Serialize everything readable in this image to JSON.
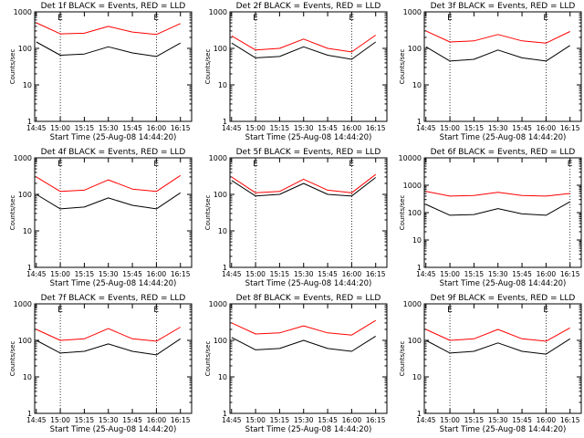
{
  "chart_data": [
    {
      "type": "line",
      "title": "Det 1f BLACK = Events, RED = LLD",
      "xlabel": "Start Time (25-Aug-08 14:44:20)",
      "ylabel": "Counts/sec",
      "y_scale": "log",
      "ylim": [
        1,
        1000
      ],
      "y_ticks": [
        "1",
        "10",
        "100",
        "1000"
      ],
      "x_ticks": [
        "14:45",
        "15:00",
        "15:15",
        "15:30",
        "15:45",
        "16:00",
        "16:15"
      ],
      "x": [
        "14:45",
        "15:00",
        "15:15",
        "15:30",
        "15:45",
        "16:00",
        "16:15"
      ],
      "markers": [
        {
          "label": "E",
          "at": "15:00"
        },
        {
          "label": "E",
          "at": "16:00"
        }
      ],
      "series": [
        {
          "values": [
            500,
            250,
            260,
            400,
            280,
            240,
            480
          ],
          "color": "#ff0000"
        },
        {
          "values": [
            150,
            65,
            70,
            110,
            75,
            60,
            140
          ],
          "color": "#000000"
        }
      ]
    },
    {
      "type": "line",
      "title": "Det 2f BLACK = Events, RED = LLD",
      "xlabel": "Start Time (25-Aug-08 14:44:20)",
      "ylabel": "Counts/sec",
      "y_scale": "log",
      "ylim": [
        1,
        1000
      ],
      "y_ticks": [
        "1",
        "10",
        "100",
        "1000"
      ],
      "x_ticks": [
        "14:45",
        "15:00",
        "15:15",
        "15:30",
        "15:45",
        "16:00",
        "16:15"
      ],
      "x": [
        "14:45",
        "15:00",
        "15:15",
        "15:30",
        "15:45",
        "16:00",
        "16:15"
      ],
      "markers": [
        {
          "label": "E",
          "at": "15:00"
        },
        {
          "label": "E",
          "at": "16:00"
        }
      ],
      "series": [
        {
          "values": [
            220,
            90,
            100,
            180,
            100,
            80,
            230
          ],
          "color": "#ff0000"
        },
        {
          "values": [
            140,
            55,
            60,
            110,
            65,
            50,
            150
          ],
          "color": "#000000"
        }
      ]
    },
    {
      "type": "line",
      "title": "Det 3f BLACK = Events, RED = LLD",
      "xlabel": "Start Time (25-Aug-08 14:44:20)",
      "ylabel": "Counts/sec",
      "y_scale": "log",
      "ylim": [
        1,
        1000
      ],
      "y_ticks": [
        "1",
        "10",
        "100",
        "1000"
      ],
      "x_ticks": [
        "14:45",
        "15:00",
        "15:15",
        "15:30",
        "15:45",
        "16:00",
        "16:15"
      ],
      "x": [
        "14:45",
        "15:00",
        "15:15",
        "15:30",
        "15:45",
        "16:00",
        "16:15"
      ],
      "markers": [
        {
          "label": "E",
          "at": "15:00"
        },
        {
          "label": "E",
          "at": "16:00"
        }
      ],
      "series": [
        {
          "values": [
            300,
            150,
            160,
            240,
            160,
            140,
            290
          ],
          "color": "#ff0000"
        },
        {
          "values": [
            110,
            45,
            50,
            90,
            55,
            45,
            120
          ],
          "color": "#000000"
        }
      ]
    },
    {
      "type": "line",
      "title": "Det 4f BLACK = Events, RED = LLD",
      "xlabel": "Start Time (25-Aug-08 14:44:20)",
      "ylabel": "Counts/sec",
      "y_scale": "log",
      "ylim": [
        1,
        1000
      ],
      "y_ticks": [
        "1",
        "10",
        "100",
        "1000"
      ],
      "x_ticks": [
        "14:45",
        "15:00",
        "15:15",
        "15:30",
        "15:45",
        "16:00",
        "16:15"
      ],
      "x": [
        "14:45",
        "15:00",
        "15:15",
        "15:30",
        "15:45",
        "16:00",
        "16:15"
      ],
      "markers": [
        {
          "label": "E",
          "at": "15:00"
        },
        {
          "label": "E",
          "at": "16:00"
        }
      ],
      "series": [
        {
          "values": [
            300,
            120,
            130,
            250,
            140,
            120,
            330
          ],
          "color": "#ff0000"
        },
        {
          "values": [
            100,
            40,
            45,
            80,
            50,
            40,
            110
          ],
          "color": "#000000"
        }
      ]
    },
    {
      "type": "line",
      "title": "Det 5f BLACK = Events, RED = LLD",
      "xlabel": "Start Time (25-Aug-08 14:44:20)",
      "ylabel": "Counts/sec",
      "y_scale": "log",
      "ylim": [
        1,
        1000
      ],
      "y_ticks": [
        "1",
        "10",
        "100",
        "1000"
      ],
      "x_ticks": [
        "14:45",
        "15:00",
        "15:15",
        "15:30",
        "15:45",
        "16:00",
        "16:15"
      ],
      "x": [
        "14:45",
        "15:00",
        "15:15",
        "15:30",
        "15:45",
        "16:00",
        "16:15"
      ],
      "markers": [
        {
          "label": "E",
          "at": "15:00"
        },
        {
          "label": "E",
          "at": "16:00"
        }
      ],
      "series": [
        {
          "values": [
            300,
            110,
            120,
            260,
            130,
            110,
            350
          ],
          "color": "#ff0000"
        },
        {
          "values": [
            240,
            90,
            100,
            200,
            100,
            90,
            290
          ],
          "color": "#000000"
        }
      ]
    },
    {
      "type": "line",
      "title": "Det 6f BLACK = Events, RED = LLD",
      "xlabel": "Start Time (25-Aug-08 14:44:20)",
      "ylabel": "Counts/sec",
      "y_scale": "log",
      "ylim": [
        1,
        10000
      ],
      "y_ticks": [
        "1",
        "10",
        "100",
        "1000",
        "10000"
      ],
      "x_ticks": [
        "14:45",
        "15:00",
        "15:15",
        "15:30",
        "15:45",
        "16:00",
        "16:15"
      ],
      "x": [
        "14:45",
        "15:00",
        "15:15",
        "15:30",
        "15:45",
        "16:00",
        "16:15"
      ],
      "markers": [
        {
          "label": "E",
          "at": "16:15"
        }
      ],
      "series": [
        {
          "values": [
            600,
            400,
            420,
            550,
            420,
            400,
            500
          ],
          "color": "#ff0000"
        },
        {
          "values": [
            200,
            80,
            85,
            140,
            90,
            80,
            250
          ],
          "color": "#000000"
        }
      ]
    },
    {
      "type": "line",
      "title": "Det 7f BLACK = Events, RED = LLD",
      "xlabel": "Start Time (25-Aug-08 14:44:20)",
      "ylabel": "Counts/sec",
      "y_scale": "log",
      "ylim": [
        1,
        1000
      ],
      "y_ticks": [
        "1",
        "10",
        "100",
        "1000"
      ],
      "x_ticks": [
        "14:45",
        "15:00",
        "15:15",
        "15:30",
        "15:45",
        "16:00",
        "16:15"
      ],
      "x": [
        "14:45",
        "15:00",
        "15:15",
        "15:30",
        "15:45",
        "16:00",
        "16:15"
      ],
      "markers": [
        {
          "label": "E",
          "at": "15:00"
        },
        {
          "label": "E",
          "at": "16:00"
        }
      ],
      "series": [
        {
          "values": [
            200,
            100,
            110,
            210,
            110,
            95,
            230
          ],
          "color": "#ff0000"
        },
        {
          "values": [
            100,
            45,
            50,
            80,
            50,
            40,
            110
          ],
          "color": "#000000"
        }
      ]
    },
    {
      "type": "line",
      "title": "Det 8f BLACK = Events, RED = LLD",
      "xlabel": "Start Time (25-Aug-08 14:44:20)",
      "ylabel": "Counts/sec",
      "y_scale": "log",
      "ylim": [
        1,
        1000
      ],
      "y_ticks": [
        "1",
        "10",
        "100",
        "1000"
      ],
      "x_ticks": [
        "14:45",
        "15:00",
        "15:15",
        "15:30",
        "15:45",
        "16:00",
        "16:15"
      ],
      "x": [
        "14:45",
        "15:00",
        "15:15",
        "15:30",
        "15:45",
        "16:00",
        "16:15"
      ],
      "markers": [],
      "series": [
        {
          "values": [
            300,
            150,
            160,
            250,
            160,
            140,
            350
          ],
          "color": "#ff0000"
        },
        {
          "values": [
            120,
            55,
            60,
            100,
            60,
            50,
            130
          ],
          "color": "#000000"
        }
      ]
    },
    {
      "type": "line",
      "title": "Det 9f BLACK = Events, RED = LLD",
      "xlabel": "Start Time (25-Aug-08 14:44:20)",
      "ylabel": "Counts/sec",
      "y_scale": "log",
      "ylim": [
        1,
        1000
      ],
      "y_ticks": [
        "1",
        "10",
        "100",
        "1000"
      ],
      "x_ticks": [
        "14:45",
        "15:00",
        "15:15",
        "15:30",
        "15:45",
        "16:00",
        "16:15"
      ],
      "x": [
        "14:45",
        "15:00",
        "15:15",
        "15:30",
        "15:45",
        "16:00",
        "16:15"
      ],
      "markers": [
        {
          "label": "E",
          "at": "15:00"
        },
        {
          "label": "E",
          "at": "16:00"
        }
      ],
      "series": [
        {
          "values": [
            200,
            100,
            110,
            200,
            110,
            95,
            220
          ],
          "color": "#ff0000"
        },
        {
          "values": [
            100,
            45,
            50,
            85,
            50,
            42,
            110
          ],
          "color": "#000000"
        }
      ]
    }
  ]
}
